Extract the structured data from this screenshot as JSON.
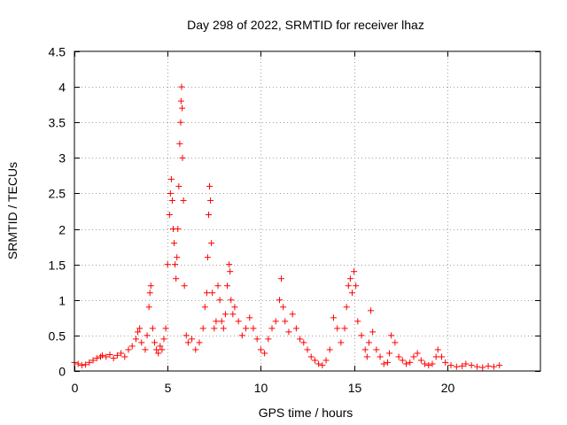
{
  "chart_data": {
    "type": "scatter",
    "title": "Day 298 of 2022, SRMTID for receiver lhaz",
    "xlabel": "GPS time / hours",
    "ylabel": "SRMTID / TECUs",
    "xlim": [
      0,
      25
    ],
    "ylim": [
      0,
      4.5
    ],
    "xticks": [
      0,
      5,
      10,
      15,
      20
    ],
    "xtick_labels": [
      "0",
      "5",
      "10",
      "15",
      "20"
    ],
    "yticks": [
      0,
      0.5,
      1,
      1.5,
      2,
      2.5,
      3,
      3.5,
      4,
      4.5
    ],
    "ytick_labels": [
      "0",
      "0.5",
      "1",
      "1.5",
      "2",
      "2.5",
      "3",
      "3.5",
      "4",
      "4.5"
    ],
    "grid": true,
    "marker": "+",
    "color": "#ff0000",
    "series": [
      {
        "name": "SRMTID",
        "x": [
          0.0,
          0.2,
          0.4,
          0.6,
          0.8,
          1.0,
          1.2,
          1.4,
          1.5,
          1.7,
          1.9,
          2.1,
          2.3,
          2.5,
          2.7,
          2.9,
          3.1,
          3.3,
          3.4,
          3.5,
          3.6,
          3.8,
          3.9,
          4.0,
          4.05,
          4.1,
          4.2,
          4.3,
          4.4,
          4.5,
          4.6,
          4.7,
          4.8,
          4.9,
          5.0,
          5.1,
          5.15,
          5.2,
          5.25,
          5.3,
          5.35,
          5.4,
          5.45,
          5.5,
          5.55,
          5.6,
          5.65,
          5.7,
          5.72,
          5.75,
          5.78,
          5.8,
          5.85,
          5.9,
          6.0,
          6.1,
          6.3,
          6.5,
          6.7,
          6.9,
          7.0,
          7.1,
          7.15,
          7.2,
          7.25,
          7.3,
          7.35,
          7.4,
          7.5,
          7.6,
          7.7,
          7.8,
          7.9,
          8.0,
          8.1,
          8.2,
          8.3,
          8.35,
          8.4,
          8.5,
          8.6,
          8.8,
          9.0,
          9.2,
          9.4,
          9.6,
          9.8,
          10.0,
          10.2,
          10.4,
          10.6,
          10.8,
          11.0,
          11.1,
          11.2,
          11.3,
          11.5,
          11.7,
          11.9,
          12.1,
          12.3,
          12.5,
          12.7,
          12.9,
          13.1,
          13.3,
          13.5,
          13.7,
          13.9,
          14.1,
          14.3,
          14.5,
          14.6,
          14.7,
          14.8,
          14.9,
          15.0,
          15.1,
          15.2,
          15.4,
          15.6,
          15.7,
          15.8,
          15.9,
          16.0,
          16.2,
          16.4,
          16.6,
          16.8,
          16.9,
          17.0,
          17.2,
          17.4,
          17.6,
          17.8,
          18.0,
          18.2,
          18.4,
          18.6,
          18.8,
          19.0,
          19.2,
          19.4,
          19.5,
          19.7,
          19.9,
          20.2,
          20.5,
          20.8,
          21.0,
          21.3,
          21.6,
          21.9,
          22.2,
          22.5,
          22.8
        ],
        "y": [
          0.12,
          0.1,
          0.08,
          0.09,
          0.12,
          0.15,
          0.18,
          0.2,
          0.22,
          0.2,
          0.23,
          0.18,
          0.22,
          0.25,
          0.2,
          0.3,
          0.35,
          0.45,
          0.55,
          0.6,
          0.4,
          0.3,
          0.5,
          0.9,
          1.1,
          1.2,
          0.6,
          0.4,
          0.3,
          0.25,
          0.35,
          0.3,
          0.45,
          0.6,
          1.5,
          2.2,
          2.5,
          2.7,
          2.4,
          2.0,
          1.8,
          1.5,
          1.3,
          1.6,
          2.0,
          2.6,
          3.2,
          3.5,
          3.8,
          4.0,
          3.7,
          3.0,
          2.4,
          1.2,
          0.5,
          0.4,
          0.45,
          0.3,
          0.4,
          0.6,
          0.9,
          1.1,
          1.6,
          2.2,
          2.6,
          2.4,
          1.8,
          1.1,
          0.6,
          0.7,
          1.2,
          1.0,
          0.7,
          0.6,
          0.8,
          1.2,
          1.5,
          1.4,
          1.0,
          0.8,
          0.9,
          0.7,
          0.5,
          0.6,
          0.75,
          0.6,
          0.45,
          0.3,
          0.25,
          0.45,
          0.6,
          0.7,
          1.0,
          1.3,
          0.9,
          0.7,
          0.55,
          0.8,
          0.6,
          0.45,
          0.4,
          0.3,
          0.2,
          0.15,
          0.1,
          0.08,
          0.15,
          0.3,
          0.75,
          0.6,
          0.4,
          0.6,
          0.9,
          1.2,
          1.3,
          1.1,
          1.4,
          1.2,
          0.7,
          0.5,
          0.3,
          0.2,
          0.4,
          0.85,
          0.55,
          0.3,
          0.2,
          0.1,
          0.12,
          0.25,
          0.5,
          0.4,
          0.2,
          0.15,
          0.1,
          0.12,
          0.2,
          0.25,
          0.15,
          0.1,
          0.08,
          0.1,
          0.2,
          0.3,
          0.2,
          0.12,
          0.08,
          0.06,
          0.07,
          0.1,
          0.08,
          0.06,
          0.05,
          0.07,
          0.06,
          0.08
        ]
      }
    ]
  }
}
